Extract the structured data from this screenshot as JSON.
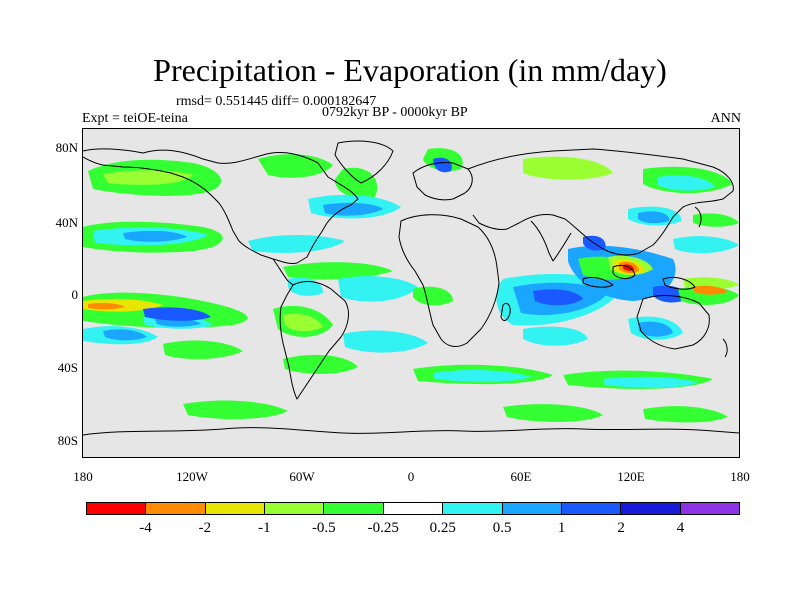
{
  "title": "Precipitation - Evaporation (in mm/day)",
  "stats": "rmsd= 0.551445 diff= 0.000182647",
  "period": "0792kyr BP - 0000kyr BP",
  "experiment": "Expt = teiOE-teina",
  "season": "ANN",
  "map": {
    "background_color": "#e6e6e6",
    "lat_labels": [
      "80N",
      "40N",
      "0",
      "40S",
      "80S"
    ],
    "lon_labels": [
      "180",
      "120W",
      "60W",
      "0",
      "60E",
      "120E",
      "180"
    ]
  },
  "colorbar": {
    "colors": [
      "#ff0000",
      "#ff8c00",
      "#e6e600",
      "#99ff33",
      "#33ff33",
      "#ffffff",
      "#33f2f2",
      "#1aa6ff",
      "#1a59ff",
      "#1a1ad9",
      "#8c33e6"
    ],
    "labels": [
      "-4",
      "-2",
      "-1",
      "-0.5",
      "-0.25",
      "0.25",
      "0.5",
      "1",
      "2",
      "4"
    ]
  }
}
